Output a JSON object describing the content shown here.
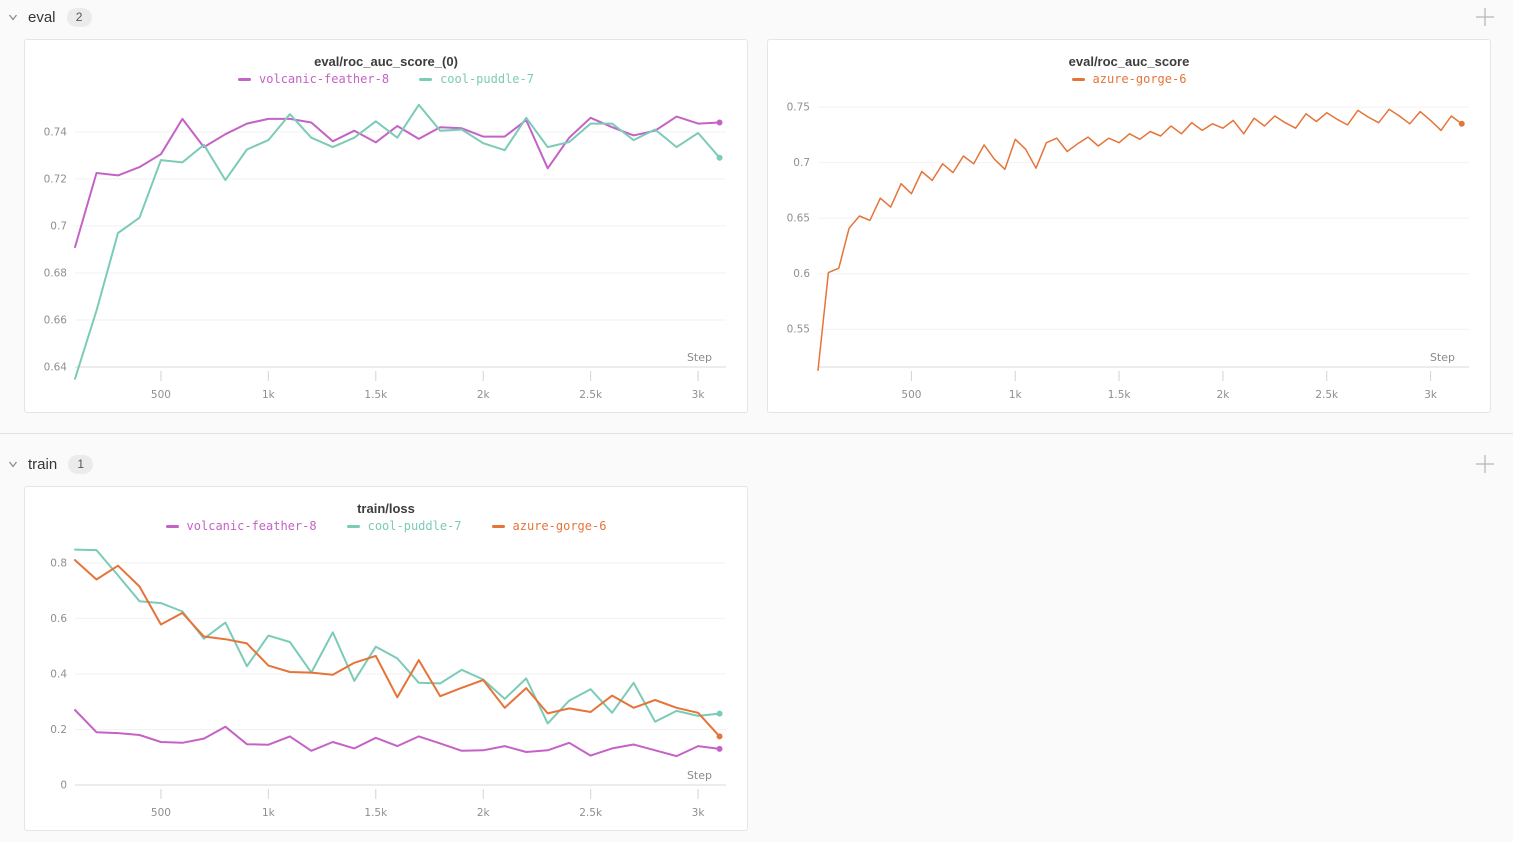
{
  "page": {
    "background": "#fafafa"
  },
  "icons": {
    "collapse_icon": "chevron-down",
    "add_panel_icon": "plus"
  },
  "sections": {
    "eval": {
      "label": "eval",
      "count": "2"
    },
    "train": {
      "label": "train",
      "count": "1"
    }
  },
  "colors": {
    "volcanic_feather_8": "#C562C6",
    "cool_puddle_7": "#7BCBB8",
    "azure_gorge_6": "#E57439",
    "grid": "#f2f2f2",
    "axis": "#d8d8d8"
  },
  "chart_data": [
    {
      "type": "line",
      "title": "eval/roc_auc_score_(0)",
      "xlabel": "Step",
      "grid": true,
      "legend_position": "top",
      "xlim": [
        100,
        3130
      ],
      "ylim": [
        0.64,
        0.751
      ],
      "xticks": {
        "values": [
          500,
          1000,
          1500,
          2000,
          2500,
          3000
        ],
        "labels": [
          "500",
          "1k",
          "1.5k",
          "2k",
          "2.5k",
          "3k"
        ]
      },
      "yticks": {
        "values": [
          0.64,
          0.66,
          0.68,
          0.7,
          0.72,
          0.74
        ],
        "labels": [
          "0.64",
          "0.66",
          "0.68",
          "0.7",
          "0.72",
          "0.74"
        ]
      },
      "series": [
        {
          "name": "volcanic-feather-8",
          "color": "#C562C6",
          "x_start": 100,
          "x_step": 100,
          "values": [
            0.691,
            0.7225,
            0.7215,
            0.725,
            0.7305,
            0.7455,
            0.7335,
            0.739,
            0.7435,
            0.7455,
            0.7455,
            0.744,
            0.736,
            0.7405,
            0.7355,
            0.7425,
            0.737,
            0.742,
            0.7415,
            0.738,
            0.738,
            0.745,
            0.7245,
            0.7375,
            0.746,
            0.742,
            0.7385,
            0.7405,
            0.7465,
            0.7435,
            0.744
          ]
        },
        {
          "name": "cool-puddle-7",
          "color": "#7BCBB8",
          "x_start": 100,
          "x_step": 100,
          "values": [
            0.635,
            0.664,
            0.697,
            0.7035,
            0.728,
            0.727,
            0.7345,
            0.7195,
            0.7325,
            0.7365,
            0.7475,
            0.7375,
            0.7335,
            0.7375,
            0.7445,
            0.7375,
            0.7515,
            0.7405,
            0.741,
            0.7352,
            0.7322,
            0.746,
            0.7335,
            0.7357,
            0.7435,
            0.7435,
            0.7365,
            0.741,
            0.7335,
            0.7395,
            0.729
          ]
        }
      ]
    },
    {
      "type": "line",
      "title": "eval/roc_auc_score",
      "xlabel": "Step",
      "grid": true,
      "legend_position": "top",
      "xlim": [
        50,
        3185
      ],
      "ylim": [
        0.516,
        0.751
      ],
      "xticks": {
        "values": [
          500,
          1000,
          1500,
          2000,
          2500,
          3000
        ],
        "labels": [
          "500",
          "1k",
          "1.5k",
          "2k",
          "2.5k",
          "3k"
        ]
      },
      "yticks": {
        "values": [
          0.55,
          0.6,
          0.65,
          0.7,
          0.75
        ],
        "labels": [
          "0.55",
          "0.6",
          "0.65",
          "0.7",
          "0.75"
        ]
      },
      "series": [
        {
          "name": "azure-gorge-6",
          "color": "#E57439",
          "x_start": 50,
          "x_step": 50,
          "values": [
            0.513,
            0.601,
            0.605,
            0.641,
            0.652,
            0.648,
            0.668,
            0.66,
            0.681,
            0.672,
            0.692,
            0.684,
            0.699,
            0.691,
            0.706,
            0.699,
            0.716,
            0.703,
            0.694,
            0.721,
            0.712,
            0.695,
            0.718,
            0.722,
            0.71,
            0.717,
            0.723,
            0.715,
            0.722,
            0.718,
            0.726,
            0.721,
            0.728,
            0.724,
            0.733,
            0.726,
            0.736,
            0.729,
            0.735,
            0.731,
            0.738,
            0.726,
            0.74,
            0.733,
            0.742,
            0.736,
            0.731,
            0.744,
            0.737,
            0.745,
            0.739,
            0.734,
            0.747,
            0.741,
            0.736,
            0.748,
            0.742,
            0.735,
            0.746,
            0.738,
            0.729,
            0.742,
            0.735
          ]
        }
      ]
    },
    {
      "type": "line",
      "title": "train/loss",
      "xlabel": "Step",
      "grid": true,
      "legend_position": "top",
      "xlim": [
        100,
        3130
      ],
      "ylim": [
        0,
        0.85
      ],
      "xticks": {
        "values": [
          500,
          1000,
          1500,
          2000,
          2500,
          3000
        ],
        "labels": [
          "500",
          "1k",
          "1.5k",
          "2k",
          "2.5k",
          "3k"
        ]
      },
      "yticks": {
        "values": [
          0,
          0.2,
          0.4,
          0.6,
          0.8
        ],
        "labels": [
          "0",
          "0.2",
          "0.4",
          "0.6",
          "0.8"
        ]
      },
      "series": [
        {
          "name": "volcanic-feather-8",
          "color": "#C562C6",
          "x_start": 100,
          "x_step": 100,
          "values": [
            0.27,
            0.19,
            0.187,
            0.18,
            0.155,
            0.152,
            0.167,
            0.21,
            0.147,
            0.145,
            0.175,
            0.123,
            0.155,
            0.132,
            0.17,
            0.14,
            0.175,
            0.15,
            0.123,
            0.125,
            0.14,
            0.119,
            0.125,
            0.152,
            0.106,
            0.132,
            0.146,
            0.125,
            0.104,
            0.14,
            0.13
          ]
        },
        {
          "name": "cool-puddle-7",
          "color": "#7BCBB8",
          "x_start": 100,
          "x_step": 100,
          "values": [
            0.848,
            0.846,
            0.755,
            0.662,
            0.655,
            0.625,
            0.527,
            0.585,
            0.428,
            0.538,
            0.515,
            0.405,
            0.55,
            0.375,
            0.498,
            0.456,
            0.368,
            0.366,
            0.415,
            0.38,
            0.31,
            0.384,
            0.222,
            0.304,
            0.345,
            0.26,
            0.368,
            0.228,
            0.267,
            0.249,
            0.257
          ]
        },
        {
          "name": "azure-gorge-6",
          "color": "#E57439",
          "x_start": 100,
          "x_step": 100,
          "values": [
            0.81,
            0.74,
            0.79,
            0.715,
            0.578,
            0.62,
            0.535,
            0.525,
            0.51,
            0.43,
            0.407,
            0.405,
            0.397,
            0.44,
            0.465,
            0.316,
            0.45,
            0.32,
            0.35,
            0.378,
            0.278,
            0.349,
            0.258,
            0.276,
            0.263,
            0.322,
            0.278,
            0.306,
            0.278,
            0.26,
            0.175
          ]
        }
      ]
    }
  ]
}
